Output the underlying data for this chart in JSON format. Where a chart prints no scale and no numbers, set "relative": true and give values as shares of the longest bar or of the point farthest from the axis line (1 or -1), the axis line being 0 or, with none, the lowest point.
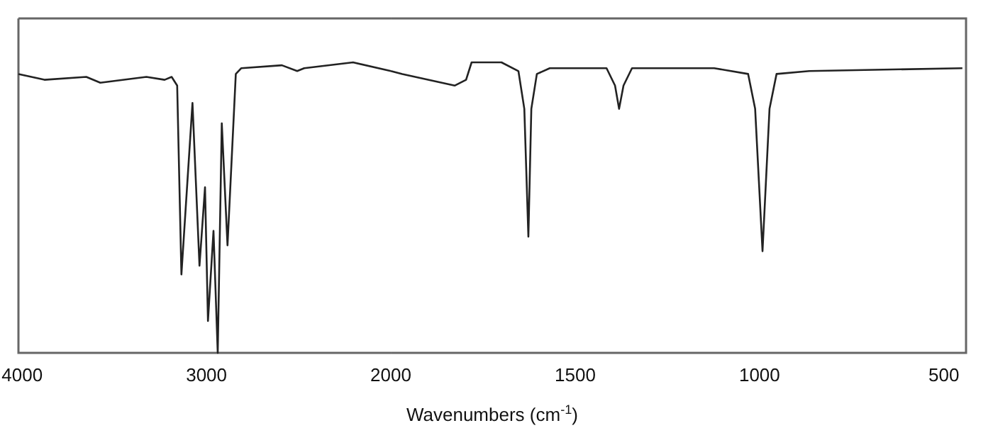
{
  "chart_data": [
    {
      "type": "line",
      "relative": true,
      "xlim": [
        4020,
        2000
      ],
      "xticks": [
        4000,
        3000,
        2000
      ],
      "tick_labels": "x",
      "grid": false,
      "marker": "none",
      "line_style": "solid",
      "series": [
        {
          "color": "#222222",
          "x": [
            4020,
            3879,
            3652,
            3576,
            3326,
            3227,
            3189,
            3159,
            3136,
            3076,
            3038,
            3008,
            2992,
            2962,
            2939,
            2917,
            2886,
            2841,
            2811,
            2591,
            2508,
            2470,
            2205,
            2000
          ],
          "values": [
            0.96,
            0.94,
            0.95,
            0.93,
            0.95,
            0.94,
            0.95,
            0.92,
            0.27,
            0.86,
            0.3,
            0.57,
            0.11,
            0.42,
            0,
            0.79,
            0.37,
            0.96,
            0.98,
            0.99,
            0.97,
            0.98,
            1.0,
            0.97
          ]
        }
      ]
    },
    {
      "type": "line",
      "relative": true,
      "xlabel": "Wavenumbers (cm$^{-1}$)",
      "xlim": [
        2000,
        440
      ],
      "xticks": [
        1500,
        1000,
        500
      ],
      "tick_labels": "x",
      "grid": false,
      "marker": "none",
      "line_style": "solid",
      "series": [
        {
          "color": "#222222",
          "x": [
            2000,
            1969,
            1827,
            1796,
            1781,
            1762,
            1700,
            1654,
            1638,
            1627,
            1619,
            1604,
            1569,
            1415,
            1392,
            1381,
            1369,
            1346,
            1123,
            1031,
            1012,
            992,
            973,
            954,
            865,
            450
          ],
          "values": [
            0.97,
            0.96,
            0.92,
            0.94,
            1.0,
            1.0,
            1.0,
            0.97,
            0.84,
            0.4,
            0.84,
            0.96,
            0.98,
            0.98,
            0.92,
            0.84,
            0.92,
            0.98,
            0.98,
            0.96,
            0.84,
            0.35,
            0.84,
            0.96,
            0.97,
            0.98
          ]
        }
      ]
    }
  ]
}
